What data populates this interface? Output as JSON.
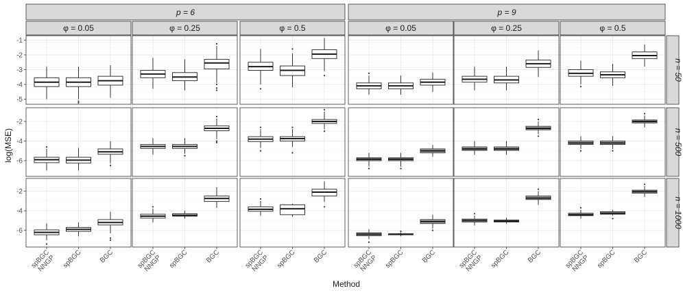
{
  "chart_data": {
    "type": "boxplot",
    "title": "",
    "xlabel": "Method",
    "ylabel": "log(MSE)",
    "p_label_prefix": "p = ",
    "n_label_prefix": "n = ",
    "phi_label_prefix": "φ = ",
    "p_values": [
      "6",
      "9"
    ],
    "phi_values": [
      "0.05",
      "0.25",
      "0.5"
    ],
    "n_values": [
      "50",
      "500",
      "1000"
    ],
    "methods": [
      {
        "key": "spBGC_NNGP",
        "lines": [
          "spBGC",
          "NNGP"
        ]
      },
      {
        "key": "spBGC",
        "lines": [
          "spBGC"
        ]
      },
      {
        "key": "BGC",
        "lines": [
          "BGC"
        ]
      }
    ],
    "y_ticks_by_row": [
      [
        "-1",
        "-2",
        "-3",
        "-4",
        "-5"
      ],
      [
        "-2",
        "-4",
        "-6"
      ],
      [
        "-2",
        "-4",
        "-6"
      ]
    ],
    "y_ranges_by_row": [
      [
        -5.35,
        -0.7
      ],
      [
        -7.6,
        -0.6
      ],
      [
        -7.7,
        -0.7
      ]
    ],
    "legend": "none",
    "grid": true,
    "panels": [
      {
        "p": "6",
        "phi": "0.05",
        "n": "50",
        "boxes": [
          {
            "min": -5.0,
            "q1": -4.15,
            "median": -3.85,
            "q3": -3.55,
            "max": -2.8,
            "outliers": []
          },
          {
            "min": -5.0,
            "q1": -4.15,
            "median": -3.85,
            "q3": -3.55,
            "max": -2.8,
            "outliers": [
              -5.15,
              -5.25
            ]
          },
          {
            "min": -4.9,
            "q1": -4.05,
            "median": -3.75,
            "q3": -3.45,
            "max": -2.7,
            "outliers": []
          }
        ]
      },
      {
        "p": "6",
        "phi": "0.25",
        "n": "50",
        "boxes": [
          {
            "min": -4.3,
            "q1": -3.55,
            "median": -3.3,
            "q3": -3.05,
            "max": -2.2,
            "outliers": []
          },
          {
            "min": -4.4,
            "q1": -3.75,
            "median": -3.5,
            "q3": -3.2,
            "max": -2.3,
            "outliers": []
          },
          {
            "min": -3.9,
            "q1": -2.95,
            "median": -2.55,
            "q3": -2.3,
            "max": -1.4,
            "outliers": [
              -4.0,
              -4.25,
              -4.4,
              -1.25
            ]
          }
        ]
      },
      {
        "p": "6",
        "phi": "0.5",
        "n": "50",
        "boxes": [
          {
            "min": -4.0,
            "q1": -3.05,
            "median": -2.8,
            "q3": -2.5,
            "max": -1.6,
            "outliers": [
              -4.3
            ]
          },
          {
            "min": -4.2,
            "q1": -3.4,
            "median": -3.05,
            "q3": -2.75,
            "max": -1.9,
            "outliers": [
              -1.6
            ]
          },
          {
            "min": -3.1,
            "q1": -2.25,
            "median": -1.95,
            "q3": -1.65,
            "max": -0.85,
            "outliers": [
              -3.4
            ]
          }
        ]
      },
      {
        "p": "9",
        "phi": "0.05",
        "n": "50",
        "boxes": [
          {
            "min": -4.7,
            "q1": -4.3,
            "median": -4.1,
            "q3": -3.9,
            "max": -3.4,
            "outliers": [
              -3.25
            ]
          },
          {
            "min": -4.7,
            "q1": -4.3,
            "median": -4.1,
            "q3": -3.9,
            "max": -3.4,
            "outliers": []
          },
          {
            "min": -4.5,
            "q1": -4.05,
            "median": -3.85,
            "q3": -3.65,
            "max": -3.2,
            "outliers": []
          }
        ]
      },
      {
        "p": "9",
        "phi": "0.25",
        "n": "50",
        "boxes": [
          {
            "min": -4.4,
            "q1": -3.85,
            "median": -3.65,
            "q3": -3.45,
            "max": -2.8,
            "outliers": []
          },
          {
            "min": -4.4,
            "q1": -3.9,
            "median": -3.7,
            "q3": -3.45,
            "max": -2.8,
            "outliers": []
          },
          {
            "min": -3.5,
            "q1": -2.85,
            "median": -2.6,
            "q3": -2.35,
            "max": -1.7,
            "outliers": []
          }
        ]
      },
      {
        "p": "9",
        "phi": "0.5",
        "n": "50",
        "boxes": [
          {
            "min": -4.0,
            "q1": -3.45,
            "median": -3.25,
            "q3": -3.0,
            "max": -2.4,
            "outliers": [
              -4.15
            ]
          },
          {
            "min": -4.1,
            "q1": -3.55,
            "median": -3.35,
            "q3": -3.15,
            "max": -2.6,
            "outliers": []
          },
          {
            "min": -2.8,
            "q1": -2.25,
            "median": -2.05,
            "q3": -1.8,
            "max": -1.3,
            "outliers": []
          }
        ]
      },
      {
        "p": "6",
        "phi": "0.05",
        "n": "500",
        "boxes": [
          {
            "min": -7.0,
            "q1": -6.2,
            "median": -5.9,
            "q3": -5.65,
            "max": -4.8,
            "outliers": [
              -4.6
            ]
          },
          {
            "min": -7.0,
            "q1": -6.25,
            "median": -5.95,
            "q3": -5.65,
            "max": -4.7,
            "outliers": []
          },
          {
            "min": -6.3,
            "q1": -5.35,
            "median": -5.1,
            "q3": -4.8,
            "max": -4.0,
            "outliers": [
              -6.5
            ]
          }
        ]
      },
      {
        "p": "6",
        "phi": "0.25",
        "n": "500",
        "boxes": [
          {
            "min": -5.4,
            "q1": -4.75,
            "median": -4.55,
            "q3": -4.35,
            "max": -3.7,
            "outliers": []
          },
          {
            "min": -5.3,
            "q1": -4.75,
            "median": -4.55,
            "q3": -4.35,
            "max": -3.7,
            "outliers": [
              -5.5
            ]
          },
          {
            "min": -3.8,
            "q1": -2.95,
            "median": -2.7,
            "q3": -2.45,
            "max": -1.7,
            "outliers": [
              -4.0,
              -4.15,
              -1.5
            ]
          }
        ]
      },
      {
        "p": "6",
        "phi": "0.5",
        "n": "500",
        "boxes": [
          {
            "min": -4.7,
            "q1": -4.05,
            "median": -3.8,
            "q3": -3.55,
            "max": -2.8,
            "outliers": [
              -5.0,
              -2.6
            ]
          },
          {
            "min": -4.6,
            "q1": -4.0,
            "median": -3.75,
            "q3": -3.55,
            "max": -2.8,
            "outliers": [
              -5.2,
              -2.6
            ]
          },
          {
            "min": -2.8,
            "q1": -2.2,
            "median": -2.0,
            "q3": -1.8,
            "max": -1.0,
            "outliers": [
              -3.0,
              -0.8
            ]
          }
        ]
      },
      {
        "p": "9",
        "phi": "0.05",
        "n": "500",
        "boxes": [
          {
            "min": -6.6,
            "q1": -6.0,
            "median": -5.85,
            "q3": -5.7,
            "max": -5.2,
            "outliers": [
              -6.8
            ]
          },
          {
            "min": -6.6,
            "q1": -6.0,
            "median": -5.85,
            "q3": -5.7,
            "max": -5.2,
            "outliers": [
              -6.8
            ]
          },
          {
            "min": -5.6,
            "q1": -5.2,
            "median": -5.0,
            "q3": -4.8,
            "max": -4.4,
            "outliers": []
          }
        ]
      },
      {
        "p": "9",
        "phi": "0.25",
        "n": "500",
        "boxes": [
          {
            "min": -5.4,
            "q1": -4.95,
            "median": -4.8,
            "q3": -4.6,
            "max": -4.0,
            "outliers": []
          },
          {
            "min": -5.4,
            "q1": -4.95,
            "median": -4.8,
            "q3": -4.6,
            "max": -4.0,
            "outliers": []
          },
          {
            "min": -3.3,
            "q1": -2.85,
            "median": -2.7,
            "q3": -2.5,
            "max": -2.0,
            "outliers": [
              -3.5,
              -1.8
            ]
          }
        ]
      },
      {
        "p": "9",
        "phi": "0.5",
        "n": "500",
        "boxes": [
          {
            "min": -4.8,
            "q1": -4.35,
            "median": -4.2,
            "q3": -4.0,
            "max": -3.5,
            "outliers": [
              -5.0
            ]
          },
          {
            "min": -4.8,
            "q1": -4.35,
            "median": -4.2,
            "q3": -4.0,
            "max": -3.5,
            "outliers": [
              -5.0
            ]
          },
          {
            "min": -2.6,
            "q1": -2.15,
            "median": -2.0,
            "q3": -1.85,
            "max": -1.4,
            "outliers": [
              -1.2
            ]
          }
        ]
      },
      {
        "p": "6",
        "phi": "0.05",
        "n": "1000",
        "boxes": [
          {
            "min": -7.0,
            "q1": -6.45,
            "median": -6.2,
            "q3": -5.95,
            "max": -5.3,
            "outliers": [
              -7.4
            ]
          },
          {
            "min": -6.6,
            "q1": -6.1,
            "median": -5.9,
            "q3": -5.7,
            "max": -5.2,
            "outliers": []
          },
          {
            "min": -6.3,
            "q1": -5.45,
            "median": -5.2,
            "q3": -4.9,
            "max": -4.1,
            "outliers": [
              -6.8,
              -7.0
            ]
          }
        ]
      },
      {
        "p": "6",
        "phi": "0.25",
        "n": "1000",
        "boxes": [
          {
            "min": -5.2,
            "q1": -4.75,
            "median": -4.55,
            "q3": -4.35,
            "max": -3.8,
            "outliers": [
              -3.6
            ]
          },
          {
            "min": -4.8,
            "q1": -4.55,
            "median": -4.45,
            "q3": -4.3,
            "max": -4.0,
            "outliers": []
          },
          {
            "min": -3.7,
            "q1": -3.05,
            "median": -2.75,
            "q3": -2.5,
            "max": -1.6,
            "outliers": []
          }
        ]
      },
      {
        "p": "6",
        "phi": "0.5",
        "n": "1000",
        "boxes": [
          {
            "min": -4.5,
            "q1": -4.05,
            "median": -3.85,
            "q3": -3.6,
            "max": -3.0,
            "outliers": [
              -2.8
            ]
          },
          {
            "min": -4.6,
            "q1": -4.4,
            "median": -3.8,
            "q3": -3.4,
            "max": -3.3,
            "outliers": []
          },
          {
            "min": -3.1,
            "q1": -2.5,
            "median": -2.1,
            "q3": -1.8,
            "max": -1.0,
            "outliers": [
              -3.6
            ]
          }
        ]
      },
      {
        "p": "9",
        "phi": "0.05",
        "n": "1000",
        "boxes": [
          {
            "min": -6.9,
            "q1": -6.55,
            "median": -6.4,
            "q3": -6.25,
            "max": -5.9,
            "outliers": [
              -7.2
            ]
          },
          {
            "min": -6.6,
            "q1": -6.45,
            "median": -6.4,
            "q3": -6.35,
            "max": -6.2,
            "outliers": [
              -6.1
            ]
          },
          {
            "min": -5.8,
            "q1": -5.3,
            "median": -5.1,
            "q3": -4.9,
            "max": -4.4,
            "outliers": [
              -6.0
            ]
          }
        ]
      },
      {
        "p": "9",
        "phi": "0.25",
        "n": "1000",
        "boxes": [
          {
            "min": -5.5,
            "q1": -5.15,
            "median": -5.0,
            "q3": -4.85,
            "max": -4.5,
            "outliers": [
              -4.3
            ]
          },
          {
            "min": -5.3,
            "q1": -5.15,
            "median": -5.05,
            "q3": -4.95,
            "max": -4.7,
            "outliers": []
          },
          {
            "min": -3.4,
            "q1": -2.85,
            "median": -2.7,
            "q3": -2.5,
            "max": -2.0,
            "outliers": [
              -1.8
            ]
          }
        ]
      },
      {
        "p": "9",
        "phi": "0.5",
        "n": "1000",
        "boxes": [
          {
            "min": -4.8,
            "q1": -4.5,
            "median": -4.4,
            "q3": -4.25,
            "max": -3.9,
            "outliers": [
              -3.7
            ]
          },
          {
            "min": -4.5,
            "q1": -4.35,
            "median": -4.25,
            "q3": -4.1,
            "max": -3.9,
            "outliers": [
              -4.8
            ]
          },
          {
            "min": -2.6,
            "q1": -2.2,
            "median": -2.05,
            "q3": -1.9,
            "max": -1.5,
            "outliers": [
              -1.3
            ]
          }
        ]
      }
    ]
  }
}
